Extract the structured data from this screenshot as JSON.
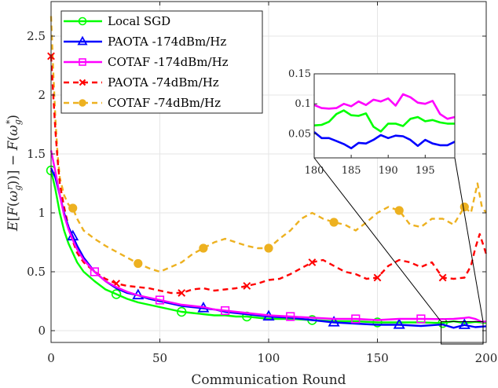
{
  "chart_data": {
    "type": "line",
    "title": "",
    "xlabel": "Communication Round",
    "ylabel": "E[F(ω_g^r)] − F(ω_g^*)",
    "xlim": [
      0,
      200
    ],
    "ylim": [
      -0.05,
      2.72
    ],
    "xticks": [
      0,
      50,
      100,
      150,
      200
    ],
    "xtick_labels": [
      "0",
      "50",
      "100",
      "150",
      "200"
    ],
    "yticks": [
      0,
      0.5,
      1,
      1.5,
      2,
      2.5
    ],
    "ytick_labels": [
      "0",
      "0.5",
      "1",
      "1.5",
      "2",
      "2.5"
    ],
    "grid": true,
    "legend_position": "top-left",
    "series": [
      {
        "name": "Local SGD",
        "color": "#00ff00",
        "style": "solid",
        "marker": "circle",
        "marker_every": 10,
        "x": [
          0,
          2,
          4,
          6,
          8,
          10,
          12,
          15,
          20,
          25,
          30,
          35,
          40,
          45,
          50,
          55,
          60,
          65,
          70,
          75,
          80,
          85,
          90,
          95,
          100,
          110,
          120,
          130,
          140,
          150,
          160,
          170,
          180,
          185,
          190,
          195,
          200
        ],
        "y": [
          1.36,
          1.2,
          1.0,
          0.85,
          0.74,
          0.66,
          0.58,
          0.5,
          0.42,
          0.35,
          0.31,
          0.27,
          0.24,
          0.22,
          0.2,
          0.18,
          0.16,
          0.15,
          0.14,
          0.13,
          0.13,
          0.12,
          0.12,
          0.11,
          0.1,
          0.1,
          0.09,
          0.08,
          0.08,
          0.07,
          0.07,
          0.07,
          0.065,
          0.08,
          0.065,
          0.075,
          0.066
        ]
      },
      {
        "name": "PAOTA -174dBm/Hz",
        "color": "#0000ff",
        "style": "solid",
        "marker": "triangle",
        "marker_every": 30,
        "x": [
          0,
          2,
          4,
          6,
          8,
          10,
          12,
          15,
          20,
          25,
          30,
          35,
          40,
          45,
          50,
          55,
          60,
          65,
          70,
          75,
          80,
          85,
          90,
          95,
          100,
          110,
          120,
          130,
          140,
          150,
          160,
          170,
          180,
          185,
          190,
          195,
          200
        ],
        "y": [
          1.38,
          1.3,
          1.15,
          1.0,
          0.88,
          0.8,
          0.72,
          0.62,
          0.5,
          0.42,
          0.36,
          0.32,
          0.3,
          0.27,
          0.25,
          0.23,
          0.21,
          0.2,
          0.19,
          0.18,
          0.16,
          0.15,
          0.14,
          0.13,
          0.12,
          0.11,
          0.09,
          0.07,
          0.06,
          0.05,
          0.05,
          0.04,
          0.053,
          0.025,
          0.048,
          0.03,
          0.037
        ]
      },
      {
        "name": "COTAF -174dBm/Hz",
        "color": "#ff00ff",
        "style": "solid",
        "marker": "square",
        "marker_every": 10,
        "x": [
          0,
          2,
          4,
          6,
          8,
          10,
          12,
          15,
          20,
          25,
          30,
          35,
          40,
          45,
          50,
          55,
          60,
          65,
          70,
          75,
          80,
          85,
          90,
          95,
          100,
          110,
          120,
          130,
          140,
          150,
          160,
          170,
          180,
          185,
          190,
          192,
          195,
          198,
          200
        ],
        "y": [
          1.53,
          1.35,
          1.15,
          0.98,
          0.86,
          0.77,
          0.69,
          0.6,
          0.5,
          0.42,
          0.37,
          0.33,
          0.3,
          0.28,
          0.26,
          0.24,
          0.22,
          0.21,
          0.2,
          0.18,
          0.17,
          0.16,
          0.15,
          0.14,
          0.13,
          0.12,
          0.11,
          0.1,
          0.1,
          0.09,
          0.1,
          0.1,
          0.098,
          0.1,
          0.108,
          0.113,
          0.1,
          0.075,
          0.078
        ]
      },
      {
        "name": "PAOTA -74dBm/Hz",
        "color": "#ff0000",
        "style": "dashed",
        "marker": "x",
        "marker_every": 10,
        "x": [
          0,
          1,
          2,
          3,
          4,
          6,
          8,
          10,
          12,
          15,
          20,
          25,
          30,
          35,
          40,
          45,
          50,
          55,
          60,
          65,
          70,
          75,
          80,
          85,
          90,
          95,
          100,
          105,
          110,
          115,
          120,
          125,
          130,
          135,
          140,
          145,
          150,
          155,
          160,
          165,
          170,
          175,
          180,
          185,
          190,
          193,
          195,
          197,
          200
        ],
        "y": [
          2.33,
          2.0,
          1.7,
          1.45,
          1.25,
          1.05,
          0.88,
          0.76,
          0.66,
          0.58,
          0.5,
          0.44,
          0.4,
          0.38,
          0.37,
          0.36,
          0.34,
          0.32,
          0.32,
          0.35,
          0.36,
          0.34,
          0.35,
          0.36,
          0.38,
          0.4,
          0.43,
          0.44,
          0.48,
          0.53,
          0.58,
          0.6,
          0.55,
          0.5,
          0.48,
          0.44,
          0.45,
          0.55,
          0.6,
          0.58,
          0.54,
          0.58,
          0.45,
          0.44,
          0.45,
          0.55,
          0.7,
          0.82,
          0.65
        ]
      },
      {
        "name": "COTAF -74dBm/Hz",
        "color": "#edb120",
        "style": "dashed",
        "marker": "circle-filled",
        "marker_every": 10,
        "x": [
          0,
          1,
          2,
          3,
          4,
          6,
          8,
          10,
          12,
          15,
          20,
          25,
          30,
          35,
          40,
          45,
          50,
          55,
          60,
          65,
          70,
          75,
          80,
          85,
          90,
          95,
          100,
          105,
          110,
          115,
          120,
          125,
          130,
          135,
          140,
          145,
          150,
          155,
          160,
          165,
          170,
          175,
          180,
          185,
          190,
          193,
          196,
          198,
          200
        ],
        "y": [
          2.67,
          2.2,
          1.8,
          1.5,
          1.3,
          1.15,
          1.07,
          1.04,
          0.95,
          0.85,
          0.78,
          0.72,
          0.67,
          0.62,
          0.57,
          0.53,
          0.5,
          0.54,
          0.58,
          0.65,
          0.7,
          0.75,
          0.78,
          0.75,
          0.72,
          0.7,
          0.7,
          0.78,
          0.85,
          0.95,
          1.0,
          0.95,
          0.92,
          0.9,
          0.85,
          0.92,
          1.0,
          1.05,
          1.02,
          0.9,
          0.88,
          0.95,
          0.95,
          0.9,
          1.05,
          1.0,
          1.25,
          1.05,
          1.0
        ]
      }
    ],
    "inset": {
      "xlim": [
        180,
        199
      ],
      "ylim": [
        0.01,
        0.15
      ],
      "xticks": [
        180,
        185,
        190,
        195
      ],
      "xtick_labels": [
        "180",
        "185",
        "190",
        "195"
      ],
      "yticks": [
        0.05,
        0.1,
        0.15
      ],
      "ytick_labels": [
        "0.05",
        "0.1",
        "0.15"
      ],
      "zoom_region": {
        "x": [
          180,
          200
        ],
        "y": [
          0,
          0.15
        ]
      },
      "series": [
        {
          "name": "COTAF -174dBm/Hz",
          "color": "#ff00ff",
          "x": [
            180,
            181,
            182,
            183,
            184,
            185,
            186,
            187,
            188,
            189,
            190,
            191,
            192,
            193,
            194,
            195,
            196,
            197,
            198,
            199
          ],
          "y": [
            0.098,
            0.093,
            0.092,
            0.093,
            0.1,
            0.096,
            0.104,
            0.098,
            0.107,
            0.104,
            0.109,
            0.097,
            0.116,
            0.111,
            0.102,
            0.1,
            0.105,
            0.083,
            0.075,
            0.078
          ]
        },
        {
          "name": "Local SGD",
          "color": "#00ff00",
          "x": [
            180,
            181,
            182,
            183,
            184,
            185,
            186,
            187,
            188,
            189,
            190,
            191,
            192,
            193,
            194,
            195,
            196,
            197,
            198,
            199
          ],
          "y": [
            0.064,
            0.065,
            0.07,
            0.083,
            0.089,
            0.081,
            0.08,
            0.084,
            0.062,
            0.054,
            0.067,
            0.067,
            0.063,
            0.075,
            0.078,
            0.071,
            0.073,
            0.069,
            0.067,
            0.067
          ]
        },
        {
          "name": "PAOTA -174dBm/Hz",
          "color": "#0000ff",
          "x": [
            180,
            181,
            182,
            183,
            184,
            185,
            186,
            187,
            188,
            189,
            190,
            191,
            192,
            193,
            194,
            195,
            196,
            197,
            198,
            199
          ],
          "y": [
            0.053,
            0.043,
            0.043,
            0.038,
            0.033,
            0.026,
            0.035,
            0.034,
            0.04,
            0.048,
            0.043,
            0.047,
            0.046,
            0.04,
            0.03,
            0.04,
            0.034,
            0.031,
            0.031,
            0.037
          ]
        }
      ]
    }
  }
}
